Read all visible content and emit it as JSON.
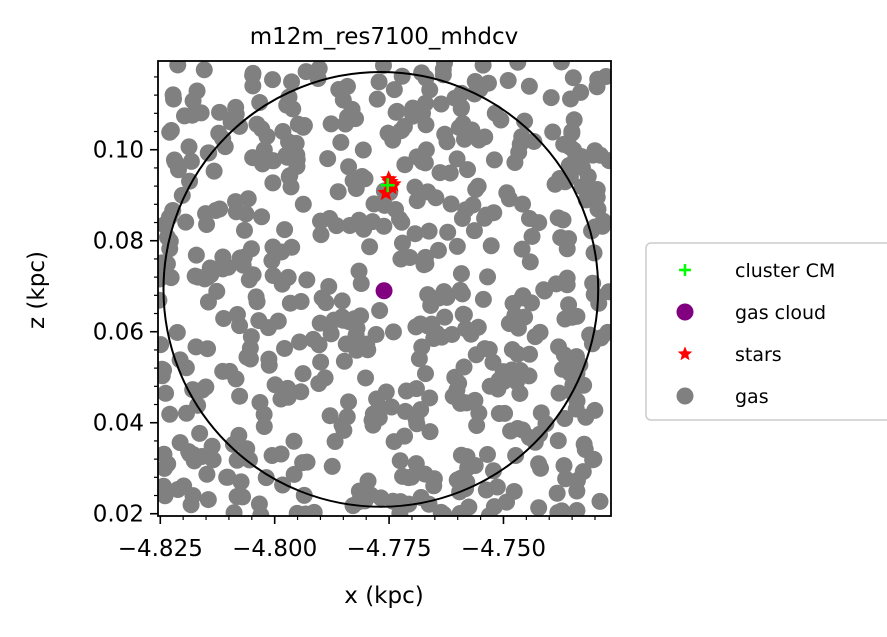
{
  "chart_data": {
    "type": "scatter",
    "title": "m12m_res7100_mhdcv",
    "xlabel": "x (kpc)",
    "ylabel": "z (kpc)",
    "xlim": [
      -4.8255,
      -4.7265
    ],
    "ylim": [
      0.0195,
      0.1195
    ],
    "xticks": [
      -4.825,
      -4.8,
      -4.775,
      -4.75
    ],
    "xtick_labels": [
      "−4.825",
      "−4.800",
      "−4.775",
      "−4.750"
    ],
    "yticks": [
      0.02,
      0.04,
      0.06,
      0.08,
      0.1
    ],
    "ytick_labels": [
      "0.02",
      "0.04",
      "0.06",
      "0.08",
      "0.10"
    ],
    "circle": {
      "center": [
        -4.7768,
        0.0693
      ],
      "radius": 0.0475,
      "color": "#000000"
    },
    "legend_position": "center-right outside",
    "series": [
      {
        "name": "cluster CM",
        "marker": "plus",
        "color": "#00ff00",
        "points": [
          [
            -4.7753,
            0.0922
          ]
        ]
      },
      {
        "name": "gas cloud",
        "marker": "circle",
        "color": "#800080",
        "points": [
          [
            -4.7761,
            0.069
          ]
        ]
      },
      {
        "name": "stars",
        "marker": "star",
        "color": "#ff0000",
        "points": [
          [
            -4.7757,
            0.0905
          ],
          [
            -4.7748,
            0.0929
          ],
          [
            -4.7745,
            0.0918
          ],
          [
            -4.7751,
            0.0935
          ],
          [
            -4.7741,
            0.0924
          ]
        ]
      },
      {
        "name": "gas",
        "marker": "circle",
        "color": "#808080",
        "count": 620
      }
    ]
  }
}
